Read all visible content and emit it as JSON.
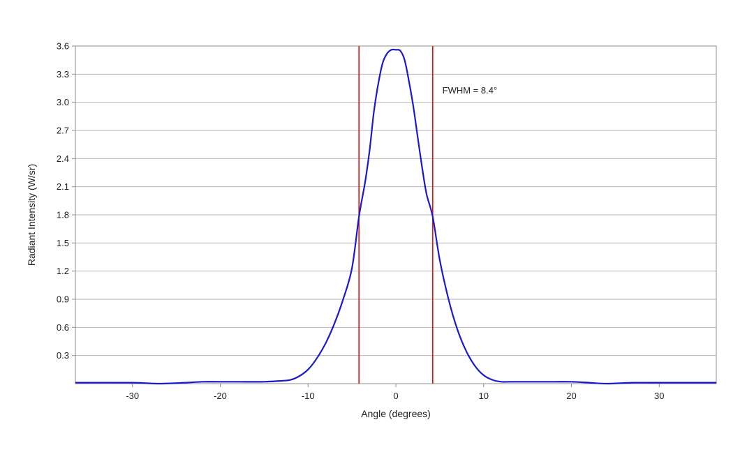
{
  "chart_data": {
    "type": "line",
    "title": "",
    "xlabel": "Angle (degrees)",
    "ylabel": "Radiant Intensity (W/sr)",
    "xlim": [
      -36.5,
      36.5
    ],
    "ylim": [
      0,
      3.6
    ],
    "xticks": [
      -30,
      -20,
      -10,
      0,
      10,
      20,
      30
    ],
    "xtick_labels": [
      "-30",
      "-20",
      "-10",
      "0",
      "10",
      "20",
      "30"
    ],
    "yticks": [
      0.3,
      0.6,
      0.9,
      1.2,
      1.5,
      1.8,
      2.1,
      2.4,
      2.7,
      3.0,
      3.3,
      3.6
    ],
    "ytick_labels": [
      "0.3",
      "0.6",
      "0.9",
      "1.2",
      "1.5",
      "1.8",
      "2.1",
      "2.4",
      "2.7",
      "3.0",
      "3.3",
      "3.6"
    ],
    "grid": "horizontal",
    "legend": "none",
    "series": [
      {
        "color": "#1a1acc",
        "x": [
          -36.5,
          -30,
          -27,
          -24,
          -22,
          -20,
          -18,
          -15,
          -13,
          -12,
          -11,
          -10,
          -9,
          -8,
          -7,
          -6,
          -5,
          -4.2,
          -3.5,
          -3,
          -2.5,
          -2,
          -1.5,
          -1,
          -0.5,
          0,
          0.5,
          1,
          1.5,
          2,
          2.5,
          3,
          3.5,
          4.2,
          5,
          6,
          7,
          8,
          9,
          10,
          11,
          12,
          13,
          15,
          18,
          20,
          22,
          24,
          27,
          30,
          36.5
        ],
        "y": [
          0.01,
          0.01,
          0.0,
          0.01,
          0.02,
          0.02,
          0.02,
          0.02,
          0.03,
          0.04,
          0.08,
          0.15,
          0.27,
          0.43,
          0.64,
          0.9,
          1.23,
          1.78,
          2.15,
          2.48,
          2.9,
          3.2,
          3.42,
          3.52,
          3.56,
          3.56,
          3.55,
          3.45,
          3.22,
          2.95,
          2.62,
          2.3,
          2.02,
          1.78,
          1.32,
          0.9,
          0.58,
          0.35,
          0.19,
          0.09,
          0.04,
          0.02,
          0.02,
          0.02,
          0.02,
          0.02,
          0.01,
          0.0,
          0.01,
          0.01,
          0.01
        ]
      }
    ],
    "markers": [
      {
        "x": -4.2,
        "color": "#e01010"
      },
      {
        "x": 4.2,
        "color": "#e01010"
      }
    ],
    "annotations": [
      {
        "text": "FWHM = 8.4°",
        "x": 5.3,
        "y": 3.13
      }
    ]
  }
}
